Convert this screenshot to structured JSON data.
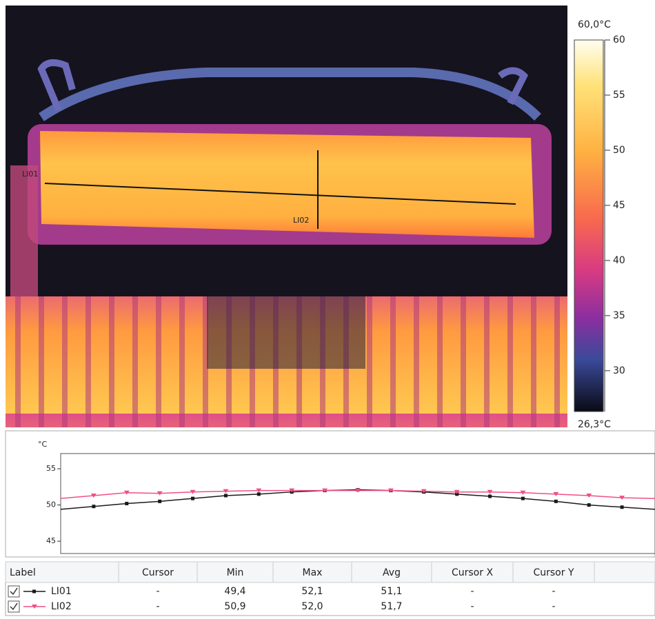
{
  "thermal_image": {
    "lines": [
      "LI01",
      "LI02"
    ],
    "scale": {
      "lim": [
        {
          "value": 26.3,
          "label": "26,3°C"
        },
        {
          "value": 60,
          "label": "60,0°C"
        }
      ],
      "ticks": [
        30,
        35,
        40,
        45,
        50,
        55,
        60
      ]
    }
  },
  "chart_data": {
    "type": "line",
    "y_label": "°C",
    "ylim": [
      43.3,
      57.1
    ],
    "yticks": [
      45,
      50,
      55
    ],
    "series": [
      {
        "name": "LI01",
        "color": "#1a1a1a",
        "values": [
          49.4,
          49.8,
          50.2,
          50.5,
          50.9,
          51.3,
          51.5,
          51.8,
          52.0,
          52.1,
          52.0,
          51.8,
          51.5,
          51.2,
          50.9,
          50.5,
          50.0,
          49.7,
          49.4
        ]
      },
      {
        "name": "LI02",
        "color": "#ee4f86",
        "values": [
          50.9,
          51.3,
          51.7,
          51.6,
          51.8,
          51.9,
          52.0,
          52.0,
          52.0,
          52.0,
          52.0,
          51.9,
          51.8,
          51.8,
          51.7,
          51.5,
          51.3,
          51.0,
          50.9
        ]
      }
    ]
  },
  "table": {
    "headers": [
      "Label",
      "Cursor",
      "Min",
      "Max",
      "Avg",
      "Cursor X",
      "Cursor Y"
    ],
    "rows": [
      [
        "LI01",
        "-",
        "49,4",
        "52,1",
        "51,1",
        "-",
        "-"
      ],
      [
        "LI02",
        "-",
        "50,9",
        "52,0",
        "51,7",
        "-",
        "-"
      ]
    ]
  }
}
